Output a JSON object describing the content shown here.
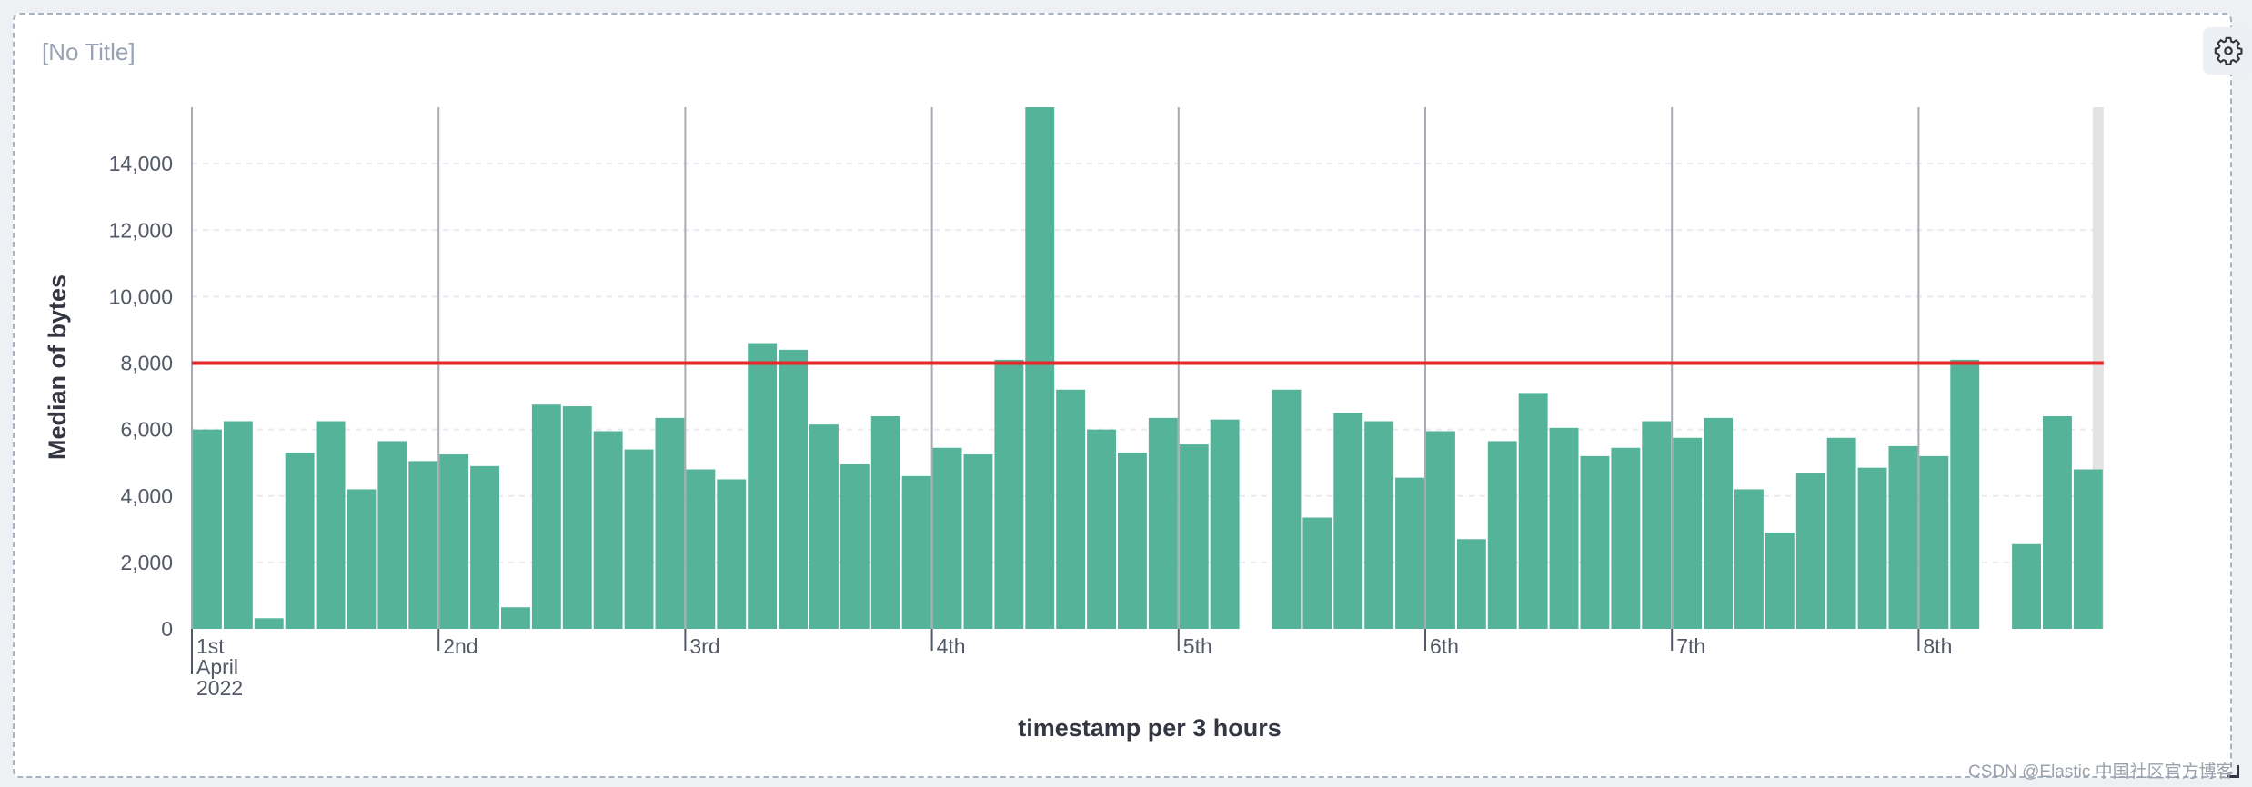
{
  "panel": {
    "title": "[No Title]",
    "settings_icon": "gear-icon",
    "watermark": "CSDN @Elastic 中国社区官方博客"
  },
  "colors": {
    "bar": "#54b399",
    "threshold": "#e7262a",
    "grid": "#e8eaef",
    "day_line": "#a8abb3",
    "end_band": "#e3e3e3"
  },
  "chart_data": {
    "type": "bar",
    "title": "",
    "xlabel": "timestamp per 3 hours",
    "ylabel": "Median of bytes",
    "ylim": [
      0,
      15700
    ],
    "yticks": [
      0,
      2000,
      4000,
      6000,
      8000,
      10000,
      12000,
      14000
    ],
    "ytick_labels": [
      "0",
      "2,000",
      "4,000",
      "6,000",
      "8,000",
      "10,000",
      "12,000",
      "14,000"
    ],
    "x_start": "2022-04-01 00:00",
    "interval_hours": 3,
    "x_tick_labels": [
      "1st",
      "2nd",
      "3rd",
      "4th",
      "5th",
      "6th",
      "7th",
      "8th"
    ],
    "x_first_tick_extra": [
      "April",
      "2022"
    ],
    "threshold_line": 8000,
    "values": [
      6000,
      6250,
      320,
      5300,
      6250,
      4200,
      5650,
      5050,
      5250,
      4900,
      650,
      6750,
      6700,
      5950,
      5400,
      6350,
      4800,
      4500,
      8600,
      8400,
      6150,
      4950,
      6400,
      4600,
      5450,
      5250,
      8100,
      15700,
      7200,
      6000,
      5300,
      6350,
      5550,
      6300,
      null,
      7200,
      3350,
      6500,
      6250,
      4550,
      5950,
      2700,
      5650,
      7100,
      6050,
      5200,
      5450,
      6250,
      5750,
      6350,
      4200,
      2900,
      4700,
      5750,
      4850,
      5500,
      5200,
      8100,
      null,
      2550,
      6400,
      4800
    ],
    "grid": true
  }
}
